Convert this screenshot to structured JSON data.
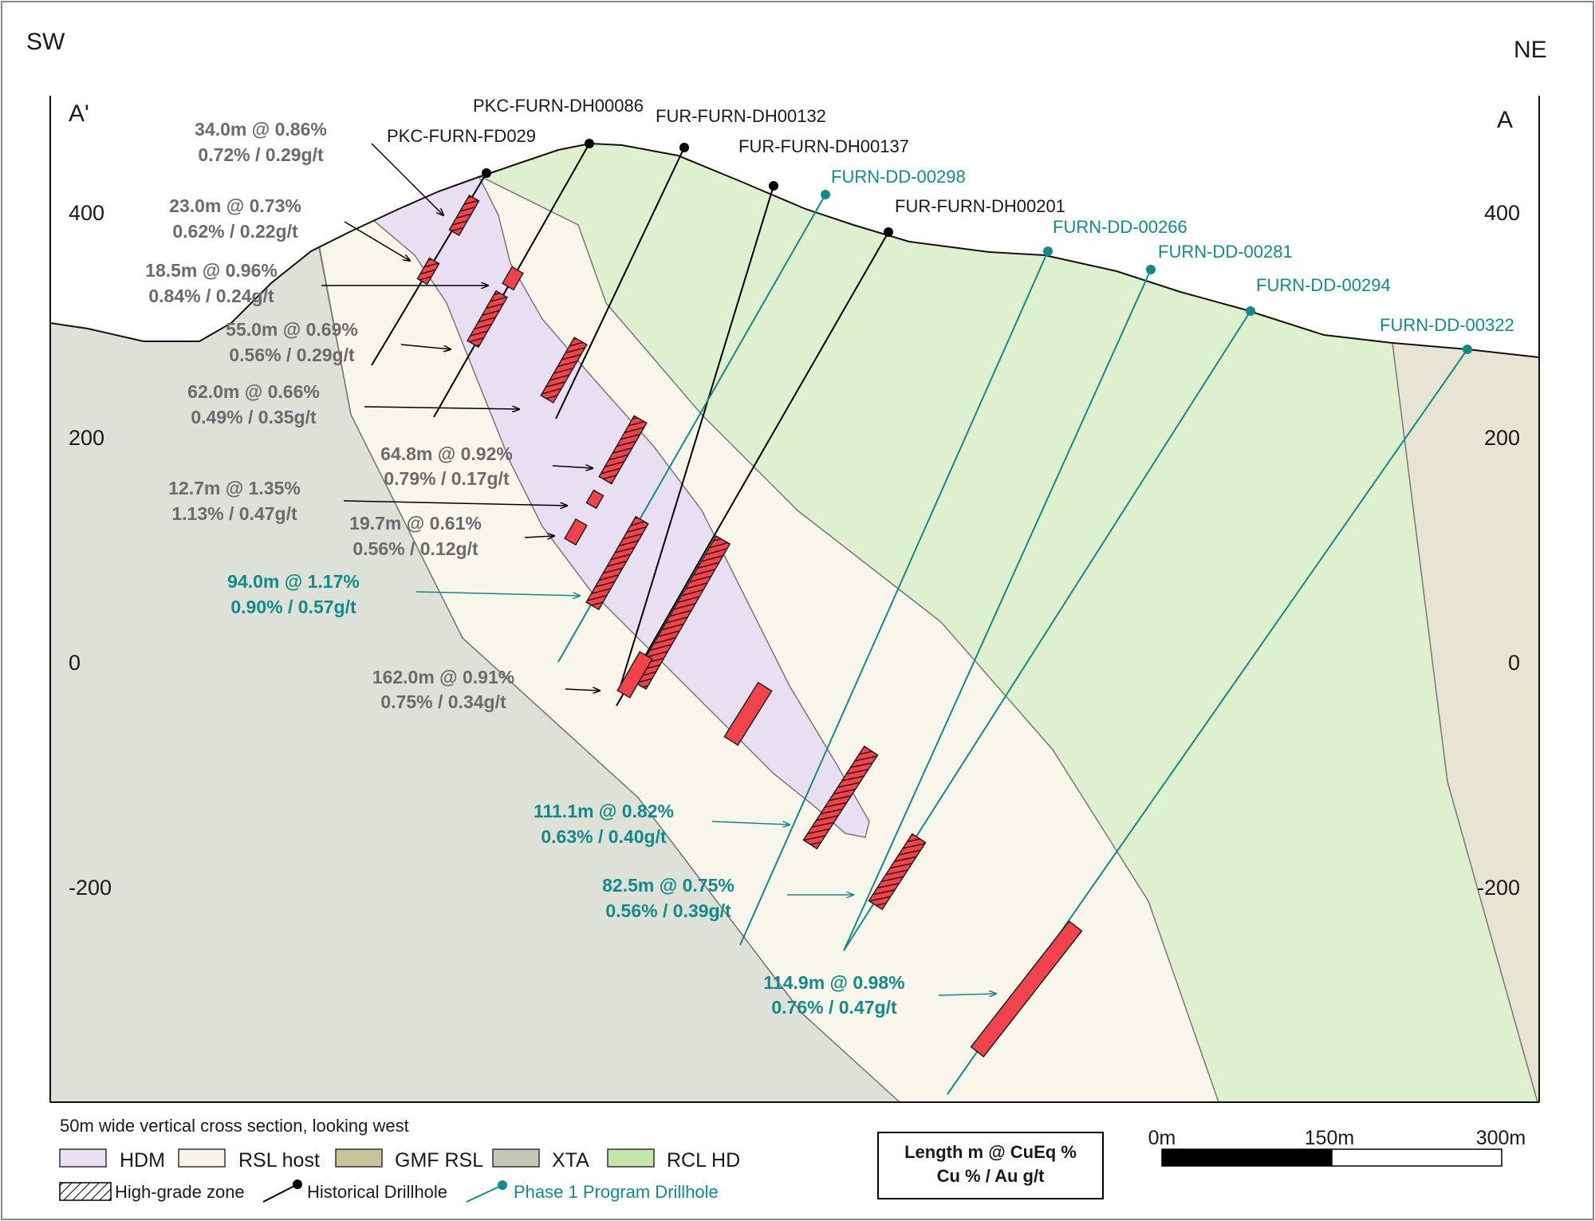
{
  "directions": {
    "left": "SW",
    "right": "NE"
  },
  "section_markers": {
    "left": "A'",
    "right": "A"
  },
  "elevation_labels": [
    "400",
    "200",
    "0",
    "-200"
  ],
  "drillholes": {
    "historical": [
      "PKC-FURN-DH00086",
      "FUR-FURN-DH00132",
      "PKC-FURN-FD029",
      "FUR-FURN-DH00137",
      "FUR-FURN-DH00201"
    ],
    "phase1": [
      "FURN-DD-00298",
      "FURN-DD-00266",
      "FURN-DD-00281",
      "FURN-DD-00294",
      "FURN-DD-00322"
    ]
  },
  "intercepts": [
    {
      "line1": "34.0m @ 0.86%",
      "line2": "0.72% / 0.29g/t",
      "program": "historical"
    },
    {
      "line1": "23.0m @ 0.73%",
      "line2": "0.62% / 0.22g/t",
      "program": "historical"
    },
    {
      "line1": "18.5m @ 0.96%",
      "line2": "0.84% / 0.24g/t",
      "program": "historical"
    },
    {
      "line1": "55.0m @ 0.69%",
      "line2": "0.56% / 0.29g/t",
      "program": "historical"
    },
    {
      "line1": "62.0m @ 0.66%",
      "line2": "0.49% / 0.35g/t",
      "program": "historical"
    },
    {
      "line1": "64.8m @ 0.92%",
      "line2": "0.79% / 0.17g/t",
      "program": "historical"
    },
    {
      "line1": "12.7m @ 1.35%",
      "line2": "1.13% / 0.47g/t",
      "program": "historical"
    },
    {
      "line1": "19.7m @ 0.61%",
      "line2": "0.56% / 0.12g/t",
      "program": "historical"
    },
    {
      "line1": "94.0m @ 1.17%",
      "line2": "0.90% / 0.57g/t",
      "program": "phase1"
    },
    {
      "line1": "162.0m @ 0.91%",
      "line2": "0.75% / 0.34g/t",
      "program": "historical"
    },
    {
      "line1": "111.1m @ 0.82%",
      "line2": "0.63% / 0.40g/t",
      "program": "phase1"
    },
    {
      "line1": "82.5m @ 0.75%",
      "line2": "0.56% / 0.39g/t",
      "program": "phase1"
    },
    {
      "line1": "114.9m @ 0.98%",
      "line2": "0.76% / 0.47g/t",
      "program": "phase1"
    }
  ],
  "legend": {
    "caption": "50m wide vertical cross section, looking west",
    "units": [
      {
        "label": "HDM",
        "color": "#e8e0f2"
      },
      {
        "label": "RSL host",
        "color": "#f6f4e6"
      },
      {
        "label": "GMF RSL",
        "color": "#c8c497"
      },
      {
        "label": "XTA",
        "color": "#c2c7b6"
      },
      {
        "label": "RCL HD",
        "color": "#c2e6a8"
      }
    ],
    "symbols": {
      "high_grade": "High-grade zone",
      "historical": "Historical Drillhole",
      "phase1": "Phase 1 Program Drillhole"
    },
    "format_box": {
      "line1": "Length m @ CuEq %",
      "line2": "Cu % / Au g/t"
    },
    "scale": {
      "labels": [
        "0m",
        "150m",
        "300m"
      ]
    }
  },
  "colors": {
    "historical_hole": "#000000",
    "phase1_hole": "#138a8a",
    "intercept": "#f0434b",
    "intercept_label_hist": "#6b6b6b",
    "intercept_label_new": "#138a8a",
    "hdm": "#e8e0f2",
    "rsl_host": "#f8f6ea",
    "xta": "#dde1d7",
    "rcl_hd": "#dff0cf",
    "gmf_rsl": "#e7e4d3"
  }
}
